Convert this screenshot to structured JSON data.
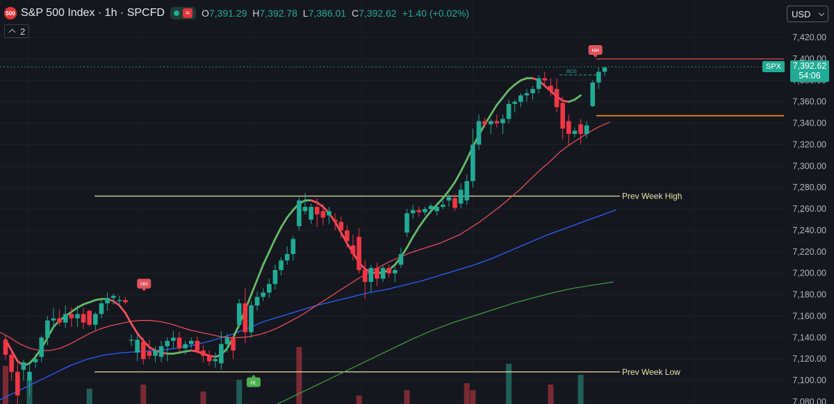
{
  "header": {
    "badge": "500",
    "title": "S&P 500 Index · 1h · SPCFD",
    "status_pill": "≈",
    "ohlc": [
      {
        "k": "O",
        "v": "7,391.29"
      },
      {
        "k": "H",
        "v": "7,392.78"
      },
      {
        "k": "L",
        "v": "7,386.01"
      },
      {
        "k": "C",
        "v": "7,392.62"
      }
    ],
    "change": "+1.40 (+0.02%)",
    "indicator_count": "2",
    "currency": "USD"
  },
  "price_label": {
    "symbol": "SPX",
    "price": "7,392.62",
    "countdown": "54:06"
  },
  "colors": {
    "background": "#15171f",
    "up": "#22ab94",
    "down": "#f23645",
    "fast_ma": "#66bb6a",
    "slow_ma": "#f7525f",
    "ma50": "#2962ff",
    "ma200": "#43a047",
    "level": "#e8e3a8",
    "orange": "#ff9800"
  },
  "chart_data": {
    "type": "candlestick",
    "yticks": [
      7420,
      7400,
      7380,
      7360,
      7340,
      7320,
      7300,
      7280,
      7260,
      7240,
      7220,
      7200,
      7180,
      7160,
      7140,
      7120,
      7100,
      7080
    ],
    "ytick_labels": [
      "7,420.00",
      "7,400.00",
      "7,380.00",
      "7,360.00",
      "7,340.00",
      "7,320.00",
      "7,300.00",
      "7,280.00",
      "7,260.00",
      "7,240.00",
      "7,220.00",
      "7,200.00",
      "7,180.00",
      "7,160.00",
      "7,140.00",
      "7,120.00",
      "7,100.00",
      "7,080.00"
    ],
    "ylim": [
      7077,
      7437
    ],
    "candles": [
      [
        7138,
        7142,
        7120,
        7124
      ],
      [
        7124,
        7130,
        7100,
        7108
      ],
      [
        7108,
        7116,
        7078,
        7086
      ],
      [
        7110,
        7119,
        7100,
        7117
      ],
      [
        7100,
        7118,
        7086,
        7108
      ],
      [
        7117,
        7125,
        7112,
        7120
      ],
      [
        7122,
        7142,
        7117,
        7140
      ],
      [
        7140,
        7160,
        7133,
        7156
      ],
      [
        7156,
        7168,
        7148,
        7158
      ],
      [
        7158,
        7166,
        7151,
        7154
      ],
      [
        7154,
        7170,
        7149,
        7162
      ],
      [
        7162,
        7168,
        7150,
        7158
      ],
      [
        7158,
        7170,
        7150,
        7162
      ],
      [
        7162,
        7168,
        7148,
        7154
      ],
      [
        7165,
        7166,
        7150,
        7152
      ],
      [
        7152,
        7164,
        7147,
        7162
      ],
      [
        7162,
        7176,
        7158,
        7172
      ],
      [
        7172,
        7182,
        7165,
        7177
      ],
      [
        7177,
        7181,
        7171,
        7179
      ],
      [
        7174,
        7179,
        7170,
        7175
      ],
      [
        7175,
        7178,
        7171,
        7173
      ],
      [
        7138,
        7143,
        7132,
        7138
      ],
      [
        7126,
        7143,
        7118,
        7138
      ],
      [
        7136,
        7140,
        7115,
        7120
      ],
      [
        7127,
        7138,
        7120,
        7123
      ],
      [
        7123,
        7132,
        7117,
        7128
      ],
      [
        7122,
        7137,
        7117,
        7132
      ],
      [
        7132,
        7140,
        7118,
        7137
      ],
      [
        7137,
        7146,
        7130,
        7140
      ],
      [
        7140,
        7145,
        7126,
        7130
      ],
      [
        7130,
        7137,
        7124,
        7134
      ],
      [
        7134,
        7140,
        7130,
        7137
      ],
      [
        7137,
        7141,
        7125,
        7128
      ],
      [
        7128,
        7133,
        7117,
        7123
      ],
      [
        7123,
        7128,
        7114,
        7118
      ],
      [
        7118,
        7126,
        7112,
        7120
      ],
      [
        7116,
        7146,
        7110,
        7134
      ],
      [
        7134,
        7144,
        7126,
        7140
      ],
      [
        7140,
        7142,
        7120,
        7128
      ],
      [
        7152,
        7176,
        7149,
        7172
      ],
      [
        7172,
        7186,
        7135,
        7145
      ],
      [
        7145,
        7174,
        7140,
        7170
      ],
      [
        7170,
        7183,
        7165,
        7178
      ],
      [
        7178,
        7186,
        7174,
        7182
      ],
      [
        7182,
        7195,
        7177,
        7190
      ],
      [
        7190,
        7208,
        7185,
        7203
      ],
      [
        7203,
        7215,
        7198,
        7212
      ],
      [
        7212,
        7225,
        7208,
        7218
      ],
      [
        7218,
        7235,
        7212,
        7232
      ],
      [
        7244,
        7271,
        7240,
        7268
      ],
      [
        7258,
        7275,
        7255,
        7262
      ],
      [
        7250,
        7265,
        7246,
        7262
      ],
      [
        7262,
        7270,
        7243,
        7255
      ],
      [
        7258,
        7265,
        7245,
        7252
      ],
      [
        7254,
        7262,
        7246,
        7258
      ],
      [
        7250,
        7256,
        7240,
        7248
      ],
      [
        7248,
        7253,
        7233,
        7240
      ],
      [
        7240,
        7245,
        7224,
        7230
      ],
      [
        7226,
        7236,
        7212,
        7218
      ],
      [
        7234,
        7242,
        7200,
        7203
      ],
      [
        7203,
        7212,
        7176,
        7192
      ],
      [
        7192,
        7208,
        7182,
        7205
      ],
      [
        7205,
        7210,
        7188,
        7195
      ],
      [
        7195,
        7207,
        7192,
        7205
      ],
      [
        7205,
        7208,
        7196,
        7200
      ],
      [
        7200,
        7206,
        7192,
        7203
      ],
      [
        7208,
        7224,
        7205,
        7218
      ],
      [
        7238,
        7260,
        7234,
        7256
      ],
      [
        7256,
        7264,
        7251,
        7259
      ],
      [
        7259,
        7262,
        7253,
        7257
      ],
      [
        7257,
        7262,
        7254,
        7260
      ],
      [
        7260,
        7265,
        7256,
        7263
      ],
      [
        7258,
        7266,
        7254,
        7262
      ],
      [
        7262,
        7268,
        7260,
        7264
      ],
      [
        7268,
        7274,
        7262,
        7271
      ],
      [
        7270,
        7274,
        7258,
        7261
      ],
      [
        7265,
        7284,
        7261,
        7278
      ],
      [
        7268,
        7292,
        7264,
        7286
      ],
      [
        7286,
        7335,
        7280,
        7320
      ],
      [
        7320,
        7348,
        7315,
        7342
      ],
      [
        7342,
        7345,
        7336,
        7339
      ],
      [
        7339,
        7344,
        7330,
        7342
      ],
      [
        7342,
        7348,
        7336,
        7340
      ],
      [
        7340,
        7348,
        7330,
        7344
      ],
      [
        7344,
        7362,
        7340,
        7358
      ],
      [
        7358,
        7362,
        7350,
        7360
      ],
      [
        7360,
        7368,
        7355,
        7366
      ],
      [
        7366,
        7372,
        7360,
        7368
      ],
      [
        7368,
        7375,
        7362,
        7372
      ],
      [
        7372,
        7385,
        7368,
        7382
      ],
      [
        7382,
        7388,
        7375,
        7380
      ],
      [
        7375,
        7382,
        7365,
        7370
      ],
      [
        7372,
        7382,
        7350,
        7355
      ],
      [
        7359,
        7365,
        7325,
        7335
      ],
      [
        7342,
        7348,
        7320,
        7330
      ],
      [
        7330,
        7336,
        7327,
        7333
      ],
      [
        7339,
        7344,
        7320,
        7330
      ],
      [
        7330,
        7342,
        7326,
        7338
      ],
      [
        7356,
        7380,
        7355,
        7378
      ],
      [
        7378,
        7392,
        7372,
        7388
      ],
      [
        7388,
        7393,
        7384,
        7392
      ]
    ],
    "volumes": [
      0,
      0,
      0,
      0,
      0,
      0,
      0,
      0,
      0,
      0,
      0,
      0,
      0,
      0,
      16,
      0,
      0,
      0,
      0,
      0,
      0,
      0,
      0,
      22,
      0,
      0,
      0,
      0,
      0,
      0,
      0,
      0,
      0,
      0,
      0,
      0,
      0,
      0,
      0,
      0,
      0,
      0,
      0,
      0,
      0,
      0,
      0,
      0,
      0,
      0,
      0,
      0,
      0,
      0,
      0,
      0,
      0,
      0,
      0,
      0,
      0,
      0,
      0,
      0,
      0,
      0,
      0,
      0,
      0,
      0,
      0,
      0,
      0,
      0,
      0,
      0,
      0,
      0,
      0,
      0,
      0,
      0,
      0,
      0,
      0,
      0,
      0,
      0,
      0,
      0,
      0,
      0,
      0,
      0,
      0,
      0,
      0,
      0,
      0,
      0,
      0
    ],
    "volume_bars": [
      {
        "i": 0,
        "v": 55,
        "d": "down"
      },
      {
        "i": 4,
        "v": 35,
        "d": "up"
      },
      {
        "i": 14,
        "v": 22,
        "d": "up"
      },
      {
        "i": 23,
        "v": 28,
        "d": "down"
      },
      {
        "i": 33,
        "v": 18,
        "d": "down"
      },
      {
        "i": 39,
        "v": 35,
        "d": "up"
      },
      {
        "i": 49,
        "v": 82,
        "d": "down"
      },
      {
        "i": 59,
        "v": 12,
        "d": "down"
      },
      {
        "i": 67,
        "v": 20,
        "d": "down"
      },
      {
        "i": 77,
        "v": 30,
        "d": "down"
      },
      {
        "i": 78,
        "v": 20,
        "d": "down"
      },
      {
        "i": 84,
        "v": 58,
        "d": "up"
      },
      {
        "i": 91,
        "v": 28,
        "d": "down"
      },
      {
        "i": 96,
        "v": 42,
        "d": "up"
      }
    ],
    "ma_fast": [
      7138,
      7128,
      7118,
      7114,
      7116,
      7122,
      7130,
      7140,
      7150,
      7156,
      7160,
      7164,
      7168,
      7171,
      7173,
      7175,
      7176,
      7176,
      7174,
      7170,
      7163,
      7153,
      7144,
      7137,
      7131,
      7128,
      7126,
      7125,
      7125,
      7126,
      7127,
      7128,
      7127,
      7125,
      7123,
      7122,
      7124,
      7130,
      7140,
      7152,
      7166,
      7180,
      7194,
      7208,
      7220,
      7232,
      7243,
      7252,
      7259,
      7265,
      7268,
      7268,
      7266,
      7262,
      7256,
      7248,
      7238,
      7228,
      7219,
      7210,
      7204,
      7201,
      7200,
      7201,
      7203,
      7208,
      7215,
      7224,
      7234,
      7243,
      7251,
      7258,
      7264,
      7270,
      7277,
      7285,
      7295,
      7306,
      7318,
      7329,
      7339,
      7348,
      7357,
      7364,
      7371,
      7376,
      7380,
      7382,
      7382,
      7380,
      7375,
      7370,
      7365,
      7361,
      7360,
      7362,
      7366
    ],
    "ma_slow": [
      7145,
      7140,
      7134,
      7130,
      7128,
      7128,
      7130,
      7134,
      7139,
      7144,
      7148,
      7151,
      7153,
      7155,
      7156,
      7156,
      7155,
      7153,
      7150,
      7147,
      7145,
      7143,
      7141,
      7140,
      7140,
      7141,
      7143,
      7146,
      7150,
      7155,
      7160,
      7166,
      7172,
      7178,
      7184,
      7190,
      7196,
      7201,
      7206,
      7211,
      7215,
      7219,
      7222,
      7225,
      7228,
      7232,
      7236,
      7242,
      7248,
      7255,
      7262,
      7270,
      7278,
      7287,
      7296,
      7304,
      7313,
      7320,
      7326,
      7332,
      7337,
      7341
    ],
    "ma50": [
      7082,
      7090,
      7098,
      7106,
      7114,
      7120,
      7124,
      7126,
      7127,
      7128,
      7130,
      7133,
      7137,
      7142,
      7148,
      7155,
      7160,
      7165,
      7170,
      7174,
      7178,
      7182,
      7185,
      7189,
      7193,
      7198,
      7203,
      7208,
      7214,
      7221,
      7228,
      7235,
      7241,
      7247,
      7253,
      7259
    ],
    "ma200": [
      7060,
      7068,
      7076,
      7085,
      7094,
      7103,
      7112,
      7121,
      7130,
      7139,
      7147,
      7154,
      7160,
      7166,
      7172,
      7177,
      7182,
      7186,
      7189,
      7192
    ],
    "levels": [
      {
        "label": "Prev Week High",
        "value": 7272
      },
      {
        "label": "Prev Week Low",
        "value": 7108
      }
    ],
    "markers": [
      {
        "label": "HH",
        "index": 24,
        "value": 7178,
        "type": "high"
      },
      {
        "label": "HL",
        "index": 43,
        "value": 7112,
        "type": "low"
      },
      {
        "label": "HH",
        "index": 102,
        "value": 7396,
        "type": "high"
      }
    ],
    "bos_label": "BOS",
    "last_price": 7392.62,
    "resistance": 7400,
    "orange_level": 7347
  }
}
